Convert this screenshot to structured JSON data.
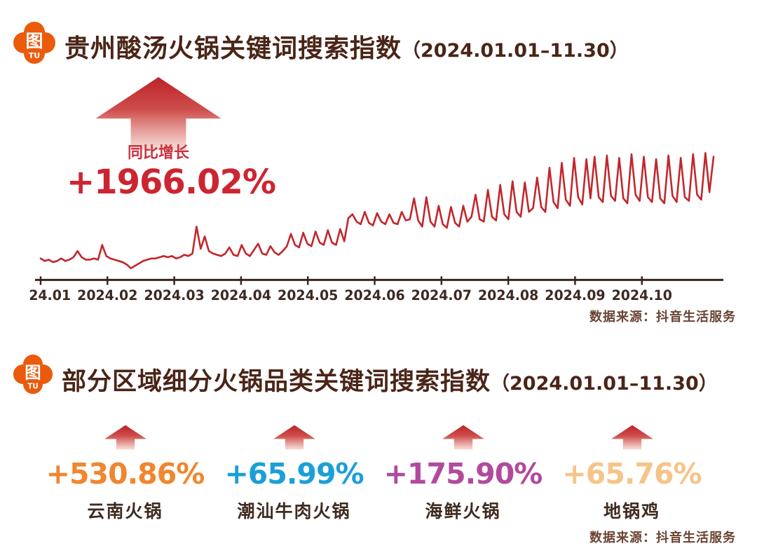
{
  "colors": {
    "title_brown": "#4a2517",
    "chart_line_red": "#c1272d",
    "growth_red": "#cc2531",
    "axis_brown": "#3a251d",
    "source_brown": "#6a4332",
    "logo_orange": "#ea5b0c",
    "arrow_gradient_top": "#bd2229",
    "arrow_gradient_bottom": "#f6d8d2"
  },
  "logo": {
    "glyph": "图",
    "subtext": "TU"
  },
  "section1": {
    "title": "贵州酸汤火锅关键词搜索指数",
    "date_range": "（2024.01.01–11.30）",
    "growth": {
      "label": "同比增长",
      "value": "+1966.02%"
    },
    "source": "数据来源：抖音生活服务"
  },
  "chart_data": {
    "type": "line",
    "title": "贵州酸汤火锅关键词搜索指数",
    "date_span": "2024.01.01–11.30",
    "x_tick_labels": [
      "2024.01",
      "2024.02",
      "2024.03",
      "2024.04",
      "2024.05",
      "2024.06",
      "2024.07",
      "2024.08",
      "2024.09",
      "2024.10"
    ],
    "x_range": [
      "2024.01.01",
      "2024.11.30"
    ],
    "y_axis_shown": false,
    "ylim": [
      0,
      105
    ],
    "grid": false,
    "legend": "none",
    "line_color": "#c1272d",
    "annotations": [
      {
        "text": "同比增长 +1966.02%",
        "position": "top-left"
      }
    ],
    "values_note": "daily search index, relative scale 0-100, ~2-day sampling",
    "values": [
      14,
      12,
      13,
      11,
      12,
      14,
      12,
      13,
      15,
      20,
      15,
      13,
      13,
      14,
      13,
      25,
      16,
      14,
      13,
      12,
      11,
      9,
      6,
      8,
      10,
      12,
      13,
      14,
      14,
      15,
      16,
      15,
      16,
      14,
      15,
      17,
      16,
      18,
      40,
      22,
      32,
      20,
      18,
      17,
      16,
      18,
      23,
      17,
      16,
      25,
      18,
      16,
      21,
      26,
      18,
      17,
      24,
      19,
      17,
      20,
      24,
      34,
      25,
      23,
      35,
      26,
      24,
      36,
      27,
      25,
      37,
      27,
      25,
      38,
      28,
      47,
      50,
      44,
      42,
      52,
      43,
      41,
      51,
      44,
      42,
      50,
      43,
      42,
      52,
      45,
      46,
      63,
      45,
      40,
      64,
      44,
      40,
      57,
      42,
      39,
      56,
      43,
      40,
      57,
      44,
      48,
      66,
      46,
      44,
      70,
      48,
      45,
      74,
      50,
      46,
      77,
      52,
      48,
      76,
      52,
      55,
      80,
      56,
      52,
      88,
      60,
      55,
      92,
      62,
      57,
      96,
      64,
      58,
      95,
      63,
      97,
      64,
      60,
      98,
      65,
      61,
      96,
      63,
      59,
      99,
      66,
      61,
      97,
      64,
      60,
      95,
      63,
      59,
      98,
      65,
      60,
      96,
      64,
      61,
      99,
      66,
      62,
      100,
      68,
      97
    ]
  },
  "section2": {
    "title": "部分区域细分火锅品类关键词搜索指数",
    "date_range": "（2024.01.01–11.30）",
    "source": "数据来源：抖音生活服务",
    "stats": [
      {
        "value": "+530.86%",
        "label": "云南火锅",
        "color": "#f0862e"
      },
      {
        "value": "+65.99%",
        "label": "潮汕牛肉火锅",
        "color": "#1b9fd8"
      },
      {
        "value": "+175.90%",
        "label": "海鲜火锅",
        "color": "#b14a9d"
      },
      {
        "value": "+65.76%",
        "label": "地锅鸡",
        "color": "#f6c488"
      }
    ]
  }
}
